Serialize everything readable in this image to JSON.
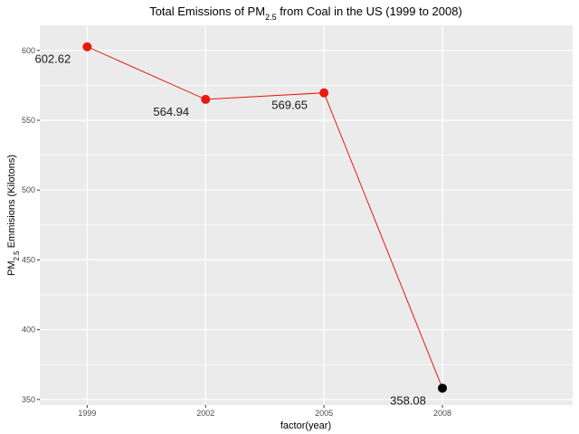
{
  "chart_data": {
    "type": "line",
    "title": {
      "prefix": "Total Emissions of PM",
      "subscript": "2.5",
      "suffix": " from Coal in the US (1999 to 2008)"
    },
    "xlabel": "factor(year)",
    "ylabel": {
      "prefix": "PM",
      "subscript": "2.5",
      "suffix": " Emmisions (Kilotons)"
    },
    "categories": [
      "1999",
      "2002",
      "2005",
      "2008"
    ],
    "series": [
      {
        "values": [
          602.62,
          564.94,
          569.65,
          358.08
        ],
        "labels": [
          "602.62",
          "564.94",
          "569.65",
          "358.08"
        ],
        "line_color": "#e8190f",
        "point_colors": [
          "#e8190f",
          "#e8190f",
          "#e8190f",
          "#000000"
        ]
      }
    ],
    "yticks": [
      "350",
      "400",
      "450",
      "500",
      "550",
      "600"
    ],
    "ylim": [
      346,
      618
    ],
    "grid": true,
    "legend": "none",
    "panel_background": "#ebebeb",
    "gridline_color": "#ffffff"
  }
}
